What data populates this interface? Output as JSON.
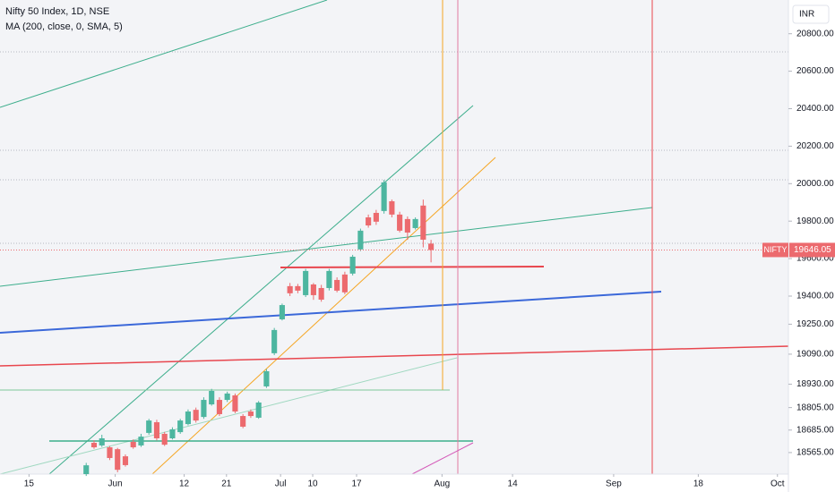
{
  "chart_data": {
    "type": "candlestick",
    "title": "Nifty 50 Index, 1D, NSE",
    "subtitle": "MA (200, close, 0, SMA, 5)",
    "currency": "INR",
    "symbol": "NIFTY",
    "last_price": 19646.05,
    "up_color": "#4db6a0",
    "down_color": "#ec6a6e",
    "x": [
      0,
      1,
      2,
      3,
      4,
      5,
      6,
      7,
      8,
      9,
      10,
      11,
      12,
      13,
      14,
      15,
      16,
      17,
      18,
      19,
      20,
      21,
      22,
      23,
      24,
      25,
      26,
      27,
      28,
      29,
      30,
      31,
      32,
      33,
      34,
      35,
      36,
      37,
      38,
      39,
      40,
      41,
      42,
      43,
      44
    ],
    "open": [
      18450,
      18617,
      18603,
      18593,
      18583,
      18545,
      18622,
      18603,
      18670,
      18727,
      18665,
      18641,
      18674,
      18717,
      18793,
      18755,
      18822,
      18846,
      18846,
      18870,
      18760,
      18784,
      18751,
      18918,
      19095,
      19276,
      19453,
      19453,
      19405,
      19462,
      19443,
      19443,
      19486,
      19515,
      19520,
      19649,
      19820,
      19844,
      19854,
      19906,
      19835,
      19811,
      19763,
      19883,
      19680
    ],
    "high": [
      18510,
      18630,
      18660,
      18600,
      18590,
      18555,
      18635,
      18665,
      18745,
      18740,
      18675,
      18700,
      18745,
      18795,
      18805,
      18860,
      18905,
      18860,
      18890,
      18880,
      18770,
      18795,
      18840,
      19010,
      19230,
      19360,
      19470,
      19465,
      19545,
      19470,
      19460,
      19545,
      19500,
      19530,
      19620,
      19760,
      19835,
      19860,
      20020,
      19915,
      19850,
      19825,
      19820,
      19915,
      19700
    ],
    "low": [
      18440,
      18585,
      18595,
      18525,
      18460,
      18490,
      18585,
      18595,
      18660,
      18630,
      18600,
      18635,
      18665,
      18710,
      18725,
      18745,
      18815,
      18760,
      18835,
      18775,
      18695,
      18750,
      18745,
      18910,
      19085,
      19270,
      19400,
      19415,
      19395,
      19380,
      19370,
      19430,
      19420,
      19410,
      19510,
      19640,
      19765,
      19780,
      19840,
      19820,
      19740,
      19700,
      19755,
      19660,
      19580
    ],
    "close": [
      18497,
      18593,
      18641,
      18536,
      18473,
      18498,
      18593,
      18650,
      18736,
      18641,
      18607,
      18689,
      18736,
      18784,
      18736,
      18846,
      18894,
      18770,
      18880,
      18784,
      18703,
      18760,
      18832,
      18999,
      19219,
      19352,
      19415,
      19429,
      19534,
      19405,
      19381,
      19534,
      19429,
      19420,
      19610,
      19749,
      19777,
      19797,
      20007,
      19835,
      19749,
      19739,
      19811,
      19701,
      19646.05
    ],
    "xlim": [
      -11,
      89.6
    ],
    "xticks": [
      {
        "value": -7.3,
        "label": "15"
      },
      {
        "value": 3.7,
        "label": "Jun"
      },
      {
        "value": 12.5,
        "label": "12"
      },
      {
        "value": 17.9,
        "label": "21"
      },
      {
        "value": 24.8,
        "label": "Jul"
      },
      {
        "value": 28.9,
        "label": "10"
      },
      {
        "value": 34.5,
        "label": "17"
      },
      {
        "value": 45.4,
        "label": "Aug"
      },
      {
        "value": 54.4,
        "label": "14"
      },
      {
        "value": 67.3,
        "label": "Sep"
      },
      {
        "value": 78.1,
        "label": "18"
      },
      {
        "value": 88.2,
        "label": "Oct"
      }
    ],
    "ylim": [
      18450,
      20980
    ],
    "yticks": [
      {
        "value": 20800,
        "label": "20800.00"
      },
      {
        "value": 20600,
        "label": "20600.00"
      },
      {
        "value": 20400,
        "label": "20400.00"
      },
      {
        "value": 20200,
        "label": "20200.00"
      },
      {
        "value": 20000,
        "label": "20000.00"
      },
      {
        "value": 19800,
        "label": "19800.00"
      },
      {
        "value": 19600,
        "label": "19600.00"
      },
      {
        "value": 19400,
        "label": "19400.00"
      },
      {
        "value": 19250,
        "label": "19250.00"
      },
      {
        "value": 19090,
        "label": "19090.00"
      },
      {
        "value": 18930,
        "label": "18930.00"
      },
      {
        "value": 18805,
        "label": "18805.00"
      },
      {
        "value": 18685,
        "label": "18685.00"
      },
      {
        "value": 18565,
        "label": "18565.00"
      }
    ]
  }
}
